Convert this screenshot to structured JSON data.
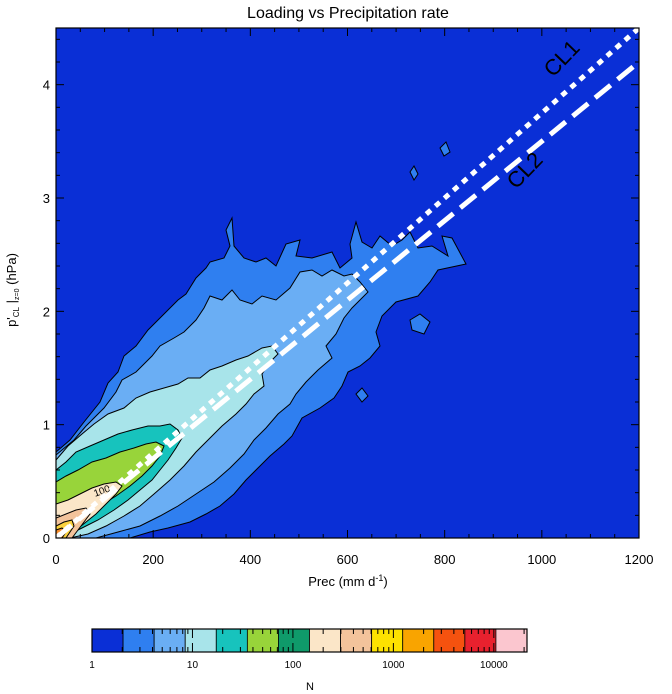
{
  "chart_data": {
    "type": "heatmap",
    "title": "Loading vs Precipitation rate",
    "xlabel": "Prec (mm d",
    "xlabel_sup": "-1",
    "xlabel_end": ")",
    "ylabel_main": "p'",
    "ylabel_sub": "CL",
    "ylabel_sub2": "z=0",
    "ylabel_end": " (hPa)",
    "xlim": [
      0,
      1200
    ],
    "ylim": [
      0,
      4.5
    ],
    "x_ticks": [
      0,
      200,
      400,
      600,
      800,
      1000,
      1200
    ],
    "y_ticks": [
      0,
      1,
      2,
      3,
      4
    ],
    "background_color": "#0a2fd6",
    "contour_levels": [
      {
        "min_n": 1,
        "color": "#0a2fd6"
      },
      {
        "min_n": 2,
        "color": "#2f7ff0"
      },
      {
        "min_n": 5,
        "color": "#6aaef4"
      },
      {
        "min_n": 10,
        "color": "#a8e4ea"
      },
      {
        "min_n": 20,
        "color": "#17c3bd"
      },
      {
        "min_n": 50,
        "color": "#98d43a"
      },
      {
        "min_n": 100,
        "color": "#fbe6c8"
      },
      {
        "min_n": 300,
        "color": "#f3c39b"
      },
      {
        "min_n": 1000,
        "color": "#fbd13e"
      },
      {
        "min_n": 3000,
        "color": "#f48b2a"
      },
      {
        "min_n": 10000,
        "color": "#e8402a"
      }
    ],
    "contour_label": "100",
    "lines": [
      {
        "name": "CL1",
        "style": "dotted",
        "color": "#ffffff",
        "x": [
          0,
          1200
        ],
        "y": [
          0,
          4.5
        ]
      },
      {
        "name": "CL2",
        "style": "dashed",
        "color": "#ffffff",
        "x": [
          0,
          1200
        ],
        "y": [
          0,
          4.2
        ]
      }
    ],
    "colorbar": {
      "label": "N",
      "tick_labels": [
        "1",
        "10",
        "100",
        "1000",
        "10000"
      ],
      "colors": [
        "#0a2fd6",
        "#2f7ff0",
        "#6aaef4",
        "#a8e4ea",
        "#17c3bd",
        "#98d43a",
        "#0f9a6a",
        "#fbe6c8",
        "#f3c39b",
        "#fde200",
        "#f9a400",
        "#f5520f",
        "#e8212e",
        "#fbc6cf"
      ]
    }
  }
}
